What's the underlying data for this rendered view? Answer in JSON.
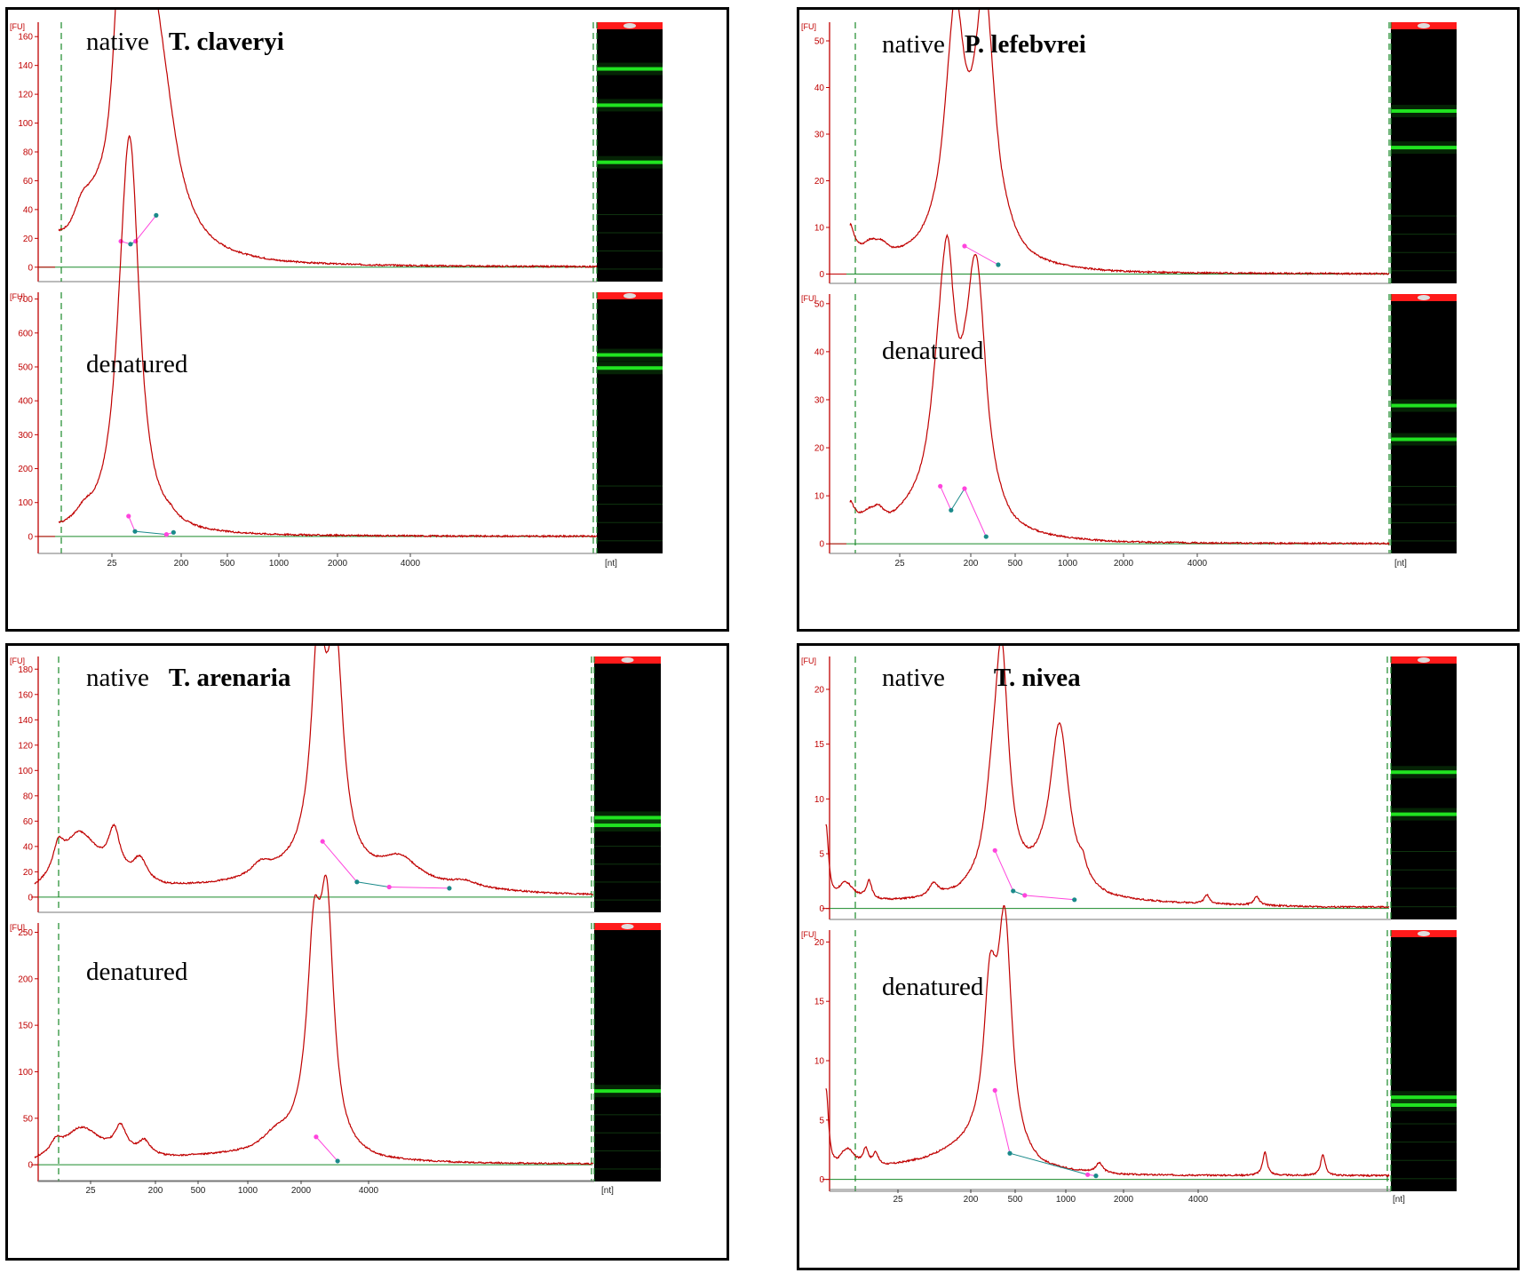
{
  "figure": {
    "fu_unit": "[FU]",
    "nt_unit": "[nt]",
    "x_ticks": [
      "25",
      "200",
      "500",
      "1000",
      "2000",
      "4000"
    ]
  },
  "colors": {
    "trace": "#c00000",
    "axis": "#c00000",
    "baseline": "#1a8a2a",
    "marker_line": "#2a7a3a",
    "pink": "#ff44dd",
    "teal": "#1a8a8a",
    "gel_band": "#22ee22",
    "gel_bg": "#000000",
    "header_red": "#ff1a1a"
  },
  "chart_data": [
    {
      "type": "line",
      "species": "T. claveryi",
      "sections": [
        {
          "label": "native",
          "ylim": [
            -10,
            170
          ],
          "yticks": [
            0,
            20,
            40,
            60,
            80,
            100,
            120,
            140,
            160
          ],
          "peaks": [
            [
              0,
              9,
              0.55
            ],
            [
              1.9,
              22,
              1.2
            ],
            [
              3.0,
              9,
              1.0
            ],
            [
              4.7,
              38,
              0.8
            ],
            [
              5.07,
              161,
              0.95
            ],
            [
              6.7,
              145,
              1.4
            ],
            [
              8.0,
              82,
              2.0
            ]
          ],
          "bg": [
            [
              0,
              0
            ],
            [
              0.5,
              3
            ],
            [
              1.5,
              5
            ],
            [
              3,
              6
            ],
            [
              4,
              8
            ],
            [
              4.7,
              10
            ],
            [
              5.5,
              12
            ],
            [
              6.5,
              14
            ],
            [
              7.6,
              10
            ],
            [
              9.5,
              3
            ],
            [
              12,
              1
            ],
            [
              17,
              0
            ]
          ],
          "markers": [
            [
              4.85,
              18
            ],
            [
              5.6,
              16
            ],
            [
              6.0,
              18
            ],
            [
              7.6,
              36
            ]
          ],
          "gel_bands": [
            0.82,
            0.68,
            0.46
          ]
        },
        {
          "label": "denatured",
          "ylim": [
            -50,
            720
          ],
          "yticks": [
            0,
            100,
            200,
            300,
            400,
            500,
            600,
            700
          ],
          "peaks": [
            [
              0,
              8,
              0.5
            ],
            [
              2.0,
              30,
              1.0
            ],
            [
              4.2,
              30,
              0.9
            ],
            [
              4.75,
              90,
              0.7
            ],
            [
              5.35,
              510,
              1.0
            ],
            [
              5.72,
              665,
              1.1
            ],
            [
              8.7,
              12,
              0.8
            ]
          ],
          "bg": [
            [
              0,
              0
            ],
            [
              0.8,
              8
            ],
            [
              2,
              12
            ],
            [
              3,
              16
            ],
            [
              4.5,
              25
            ],
            [
              5.0,
              30
            ],
            [
              6.2,
              8
            ],
            [
              7,
              3
            ],
            [
              9,
              2
            ],
            [
              11,
              0
            ],
            [
              17,
              0
            ]
          ],
          "markers": [
            [
              5.45,
              60
            ],
            [
              5.95,
              15
            ],
            [
              8.4,
              6
            ],
            [
              8.95,
              12
            ]
          ],
          "gel_bands": [
            0.76,
            0.71
          ]
        }
      ]
    },
    {
      "type": "line",
      "species": "P. lefebvrei",
      "sections": [
        {
          "label": "native",
          "ylim": [
            -2,
            54
          ],
          "yticks": [
            0,
            10,
            20,
            30,
            40,
            50
          ],
          "peaks": [
            [
              0,
              9,
              0.5
            ],
            [
              1.5,
              2,
              1.2
            ],
            [
              2.4,
              2,
              0.9
            ],
            [
              7.3,
              7,
              1.0
            ],
            [
              7.85,
              40,
              1.05
            ],
            [
              10.0,
              51,
              1.2
            ],
            [
              11.5,
              2,
              1.2
            ]
          ],
          "bg": [
            [
              0,
              0
            ],
            [
              0.5,
              2
            ],
            [
              1.5,
              3
            ],
            [
              3,
              2
            ],
            [
              5,
              3
            ],
            [
              6.6,
              5
            ],
            [
              7.6,
              7
            ],
            [
              8.7,
              7
            ],
            [
              10,
              6
            ],
            [
              11.2,
              1
            ],
            [
              13,
              0.5
            ],
            [
              20,
              0
            ]
          ],
          "markers": [
            [
              8.5,
              6
            ],
            [
              11.0,
              2
            ]
          ],
          "gel_bands": [
            0.66,
            0.52
          ]
        },
        {
          "label": "denatured",
          "ylim": [
            -2,
            52
          ],
          "yticks": [
            0,
            10,
            20,
            30,
            40,
            50
          ],
          "peaks": [
            [
              0,
              7,
              0.5
            ],
            [
              1.3,
              2,
              1.3
            ],
            [
              2.1,
              2,
              0.7
            ],
            [
              6.2,
              4,
              1.0
            ],
            [
              6.6,
              9,
              0.8
            ],
            [
              7.25,
              43,
              0.9
            ],
            [
              9.4,
              47,
              1.2
            ]
          ],
          "bg": [
            [
              0,
              0
            ],
            [
              0.5,
              2
            ],
            [
              1.5,
              3
            ],
            [
              3,
              3
            ],
            [
              5.5,
              7
            ],
            [
              6.8,
              10
            ],
            [
              7.6,
              7
            ],
            [
              8.5,
              11
            ],
            [
              9.0,
              11
            ],
            [
              10.3,
              2
            ],
            [
              12,
              0.5
            ],
            [
              20,
              0
            ]
          ],
          "markers": [
            [
              6.7,
              12
            ],
            [
              7.5,
              7
            ],
            [
              8.5,
              11.5
            ],
            [
              10.1,
              1.5
            ]
          ],
          "gel_bands": [
            0.57,
            0.44
          ]
        }
      ]
    },
    {
      "type": "line",
      "species": "T. arenaria",
      "sections": [
        {
          "label": "native",
          "ylim": [
            -12,
            190
          ],
          "yticks": [
            0,
            20,
            40,
            60,
            80,
            100,
            120,
            140,
            160,
            180
          ],
          "peaks": [
            [
              1.1,
              20,
              0.6
            ],
            [
              2.1,
              40,
              2.2
            ],
            [
              3.7,
              35,
              0.7
            ],
            [
              4.9,
              18,
              0.8
            ],
            [
              10.5,
              10,
              1.2
            ],
            [
              13.2,
              165,
              0.8
            ],
            [
              14.0,
              170,
              0.9
            ],
            [
              17.0,
              20,
              2.2
            ],
            [
              20.0,
              5,
              1.5
            ]
          ],
          "bg": [
            [
              0,
              0
            ],
            [
              0.8,
              3
            ],
            [
              2,
              8
            ],
            [
              6,
              5
            ],
            [
              10,
              10
            ],
            [
              12.5,
              20
            ],
            [
              15,
              12
            ],
            [
              17,
              8
            ],
            [
              20,
              5
            ],
            [
              24,
              2
            ],
            [
              30,
              0.5
            ],
            [
              35,
              0
            ]
          ],
          "markers": [
            [
              13.4,
              44
            ],
            [
              15.0,
              12
            ],
            [
              16.5,
              8
            ],
            [
              19.3,
              7
            ]
          ],
          "gel_bands": [
            0.37,
            0.34
          ]
        },
        {
          "label": "denatured",
          "ylim": [
            -18,
            260
          ],
          "yticks": [
            0,
            50,
            100,
            150,
            200,
            250
          ],
          "peaks": [
            [
              1.0,
              12,
              0.6
            ],
            [
              2.2,
              32,
              2.2
            ],
            [
              4.0,
              28,
              0.7
            ],
            [
              5.1,
              15,
              0.7
            ],
            [
              11.2,
              12,
              1.5
            ],
            [
              13.0,
              195,
              0.8
            ],
            [
              13.6,
              238,
              0.8
            ]
          ],
          "bg": [
            [
              0,
              0
            ],
            [
              0.8,
              3
            ],
            [
              2,
              6
            ],
            [
              6,
              5
            ],
            [
              10,
              10
            ],
            [
              12.5,
              20
            ],
            [
              14.2,
              5
            ],
            [
              16,
              2
            ],
            [
              20,
              1
            ],
            [
              35,
              0
            ]
          ],
          "markers": [
            [
              13.1,
              30
            ],
            [
              14.1,
              4
            ]
          ],
          "gel_bands": [
            0.35
          ]
        }
      ]
    },
    {
      "type": "line",
      "species": "T. nivea",
      "sections": [
        {
          "label": "native",
          "ylim": [
            -1,
            23
          ],
          "yticks": [
            0,
            5,
            10,
            15,
            20
          ],
          "peaks": [
            [
              0,
              7.3,
              0.3
            ],
            [
              1.2,
              1.4,
              0.9
            ],
            [
              2.6,
              1.7,
              0.3
            ],
            [
              6.5,
              1.2,
              0.5
            ],
            [
              10.0,
              4.5,
              0.8
            ],
            [
              10.6,
              20.5,
              0.8
            ],
            [
              14.1,
              15,
              1.1
            ],
            [
              15.5,
              1.2,
              0.4
            ],
            [
              23,
              0.8,
              0.3
            ],
            [
              26,
              0.8,
              0.3
            ]
          ],
          "bg": [
            [
              0,
              0
            ],
            [
              0.5,
              0.3
            ],
            [
              1,
              0.7
            ],
            [
              3,
              0.5
            ],
            [
              6,
              0.6
            ],
            [
              8,
              0.9
            ],
            [
              9.8,
              1.8
            ],
            [
              11.6,
              1.5
            ],
            [
              13,
              1.8
            ],
            [
              14.9,
              1.0
            ],
            [
              17,
              0.5
            ],
            [
              30,
              0.1
            ]
          ],
          "markers": [
            [
              10.2,
              5.3
            ],
            [
              11.3,
              1.6
            ],
            [
              12.0,
              1.2
            ],
            [
              15.0,
              0.8
            ]
          ],
          "gel_bands": [
            0.56,
            0.4
          ]
        },
        {
          "label": "denatured",
          "ylim": [
            -1,
            21
          ],
          "yticks": [
            0,
            5,
            10,
            15,
            20
          ],
          "peaks": [
            [
              0,
              7.3,
              0.3
            ],
            [
              1.3,
              1.7,
              0.9
            ],
            [
              2.4,
              1.4,
              0.3
            ],
            [
              3.0,
              1.1,
              0.3
            ],
            [
              9.9,
              11.4,
              0.7
            ],
            [
              10.8,
              18.4,
              0.8
            ],
            [
              16.5,
              0.8,
              0.4
            ],
            [
              26.5,
              2.0,
              0.25
            ],
            [
              30,
              1.8,
              0.25
            ]
          ],
          "bg": [
            [
              0,
              0
            ],
            [
              1,
              0.6
            ],
            [
              3,
              0.8
            ],
            [
              6,
              1.5
            ],
            [
              8.5,
              2.5
            ],
            [
              10.2,
              3.2
            ],
            [
              11.5,
              1.2
            ],
            [
              13,
              0.6
            ],
            [
              18,
              0.3
            ],
            [
              30,
              0.3
            ]
          ],
          "markers": [
            [
              10.2,
              7.5
            ],
            [
              11.1,
              2.2
            ],
            [
              15.8,
              0.4
            ],
            [
              16.3,
              0.3
            ]
          ],
          "gel_bands": [
            0.36,
            0.33
          ]
        }
      ]
    }
  ]
}
